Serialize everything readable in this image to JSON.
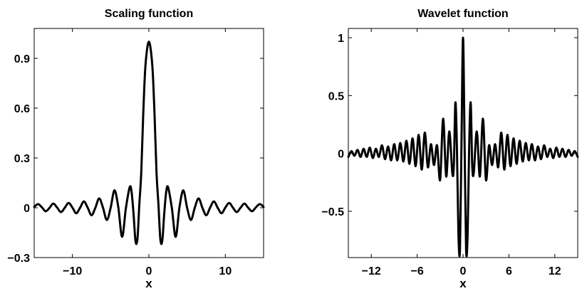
{
  "chart_data": [
    {
      "type": "line",
      "title": "Scaling function",
      "xlabel": "x",
      "ylabel": "",
      "xlim": [
        -15,
        15
      ],
      "ylim": [
        -0.3,
        1.08
      ],
      "xticks": [
        -10,
        0,
        10
      ],
      "xtick_labels": [
        "−10",
        "0",
        "10"
      ],
      "yticks": [
        -0.3,
        0,
        0.3,
        0.6,
        0.9
      ],
      "ytick_labels": [
        "−0.3",
        "0",
        "0.3",
        "0.6",
        "0.9"
      ],
      "grid": false,
      "series": [
        {
          "x": [
            -15,
            -14.5,
            -14,
            -13.5,
            -13,
            -12.5,
            -12,
            -11.5,
            -11,
            -10.5,
            -10,
            -9.5,
            -9,
            -8.5,
            -8,
            -7.5,
            -7,
            -6.5,
            -6,
            -5.5,
            -5,
            -4.5,
            -4,
            -3.5,
            -3,
            -2.5,
            -2.25,
            -2,
            -1.75,
            -1.5,
            -1.25,
            -1,
            -0.75,
            -0.5,
            -0.25,
            0,
            0.25,
            0.5,
            0.75,
            1,
            1.25,
            1.5,
            1.75,
            2,
            2.25,
            2.5,
            3,
            3.5,
            4,
            4.5,
            5,
            5.5,
            6,
            6.5,
            7,
            7.5,
            8,
            8.5,
            9,
            9.5,
            10,
            10.5,
            11,
            11.5,
            12,
            12.5,
            13,
            13.5,
            14,
            14.5,
            15
          ],
          "values": [
            0.005,
            0.022,
            0.003,
            -0.021,
            -0.001,
            0.025,
            0.001,
            -0.026,
            0,
            0.029,
            0.001,
            -0.033,
            0,
            0.038,
            0,
            -0.045,
            0,
            0.056,
            0,
            -0.074,
            0,
            0.105,
            0.003,
            -0.175,
            0,
            0.125,
            0.09,
            -0.04,
            -0.2,
            -0.19,
            0.02,
            0.21,
            0.55,
            0.82,
            0.95,
            1.0,
            0.95,
            0.82,
            0.55,
            0.21,
            0.02,
            -0.19,
            -0.2,
            -0.04,
            0.09,
            0.125,
            0,
            -0.175,
            0.003,
            0.105,
            0,
            -0.074,
            0,
            0.056,
            0,
            -0.045,
            0,
            0.038,
            0,
            -0.033,
            0.001,
            0.029,
            0,
            -0.026,
            0.001,
            0.025,
            -0.001,
            -0.021,
            0.003,
            0.022,
            0.005
          ]
        }
      ]
    },
    {
      "type": "line",
      "title": "Wavelet function",
      "xlabel": "x",
      "ylabel": "",
      "xlim": [
        -15,
        15
      ],
      "ylim": [
        -0.9,
        1.08
      ],
      "xticks": [
        -12,
        -6,
        0,
        6,
        12
      ],
      "xtick_labels": [
        "−12",
        "−6",
        "0",
        "6",
        "12"
      ],
      "yticks": [
        -0.5,
        0,
        0.5,
        1
      ],
      "ytick_labels": [
        "−0.5",
        "0",
        "0.5",
        "1"
      ],
      "grid": false,
      "series": [
        {
          "x": [
            -15,
            -14.6,
            -14.2,
            -13.8,
            -13.4,
            -13,
            -12.6,
            -12.2,
            -11.8,
            -11.4,
            -11,
            -10.6,
            -10.2,
            -9.8,
            -9.4,
            -9,
            -8.6,
            -8.2,
            -7.8,
            -7.4,
            -7,
            -6.6,
            -6.2,
            -5.8,
            -5.4,
            -5,
            -4.6,
            -4.2,
            -3.8,
            -3.4,
            -3,
            -2.6,
            -2.2,
            -1.8,
            -1.4,
            -1.2,
            -1,
            -0.8,
            -0.6,
            -0.4,
            -0.2,
            0,
            0.2,
            0.4,
            0.6,
            0.8,
            1,
            1.2,
            1.4,
            1.8,
            2.2,
            2.6,
            3,
            3.4,
            3.8,
            4.2,
            4.6,
            5,
            5.4,
            5.8,
            6.2,
            6.6,
            7,
            7.4,
            7.8,
            8.2,
            8.6,
            9,
            9.4,
            9.8,
            10.2,
            10.6,
            11,
            11.4,
            11.8,
            12.2,
            12.6,
            13,
            13.4,
            13.8,
            14.2,
            14.6,
            15
          ],
          "values": [
            -0.03,
            0.02,
            -0.02,
            0.03,
            -0.03,
            0.04,
            -0.03,
            0.05,
            -0.04,
            0.04,
            -0.03,
            0.07,
            -0.05,
            0.06,
            -0.06,
            0.08,
            -0.06,
            0.09,
            -0.07,
            0.11,
            -0.09,
            0.13,
            -0.11,
            0.16,
            -0.14,
            0.18,
            -0.12,
            0.08,
            -0.1,
            0.07,
            -0.23,
            0.3,
            -0.2,
            0.19,
            -0.17,
            -0.1,
            0.44,
            0.05,
            -0.7,
            -0.83,
            0.1,
            1.0,
            0.1,
            -0.83,
            -0.7,
            0.05,
            0.44,
            -0.1,
            -0.17,
            0.19,
            -0.2,
            0.3,
            -0.23,
            0.07,
            -0.1,
            0.08,
            -0.12,
            0.18,
            -0.14,
            0.16,
            -0.11,
            0.13,
            -0.09,
            0.11,
            -0.07,
            0.09,
            -0.06,
            0.08,
            -0.06,
            0.06,
            -0.05,
            0.07,
            -0.03,
            0.04,
            -0.04,
            0.05,
            -0.03,
            0.04,
            -0.03,
            0.03,
            -0.02,
            0.02,
            -0.03
          ]
        }
      ]
    }
  ]
}
